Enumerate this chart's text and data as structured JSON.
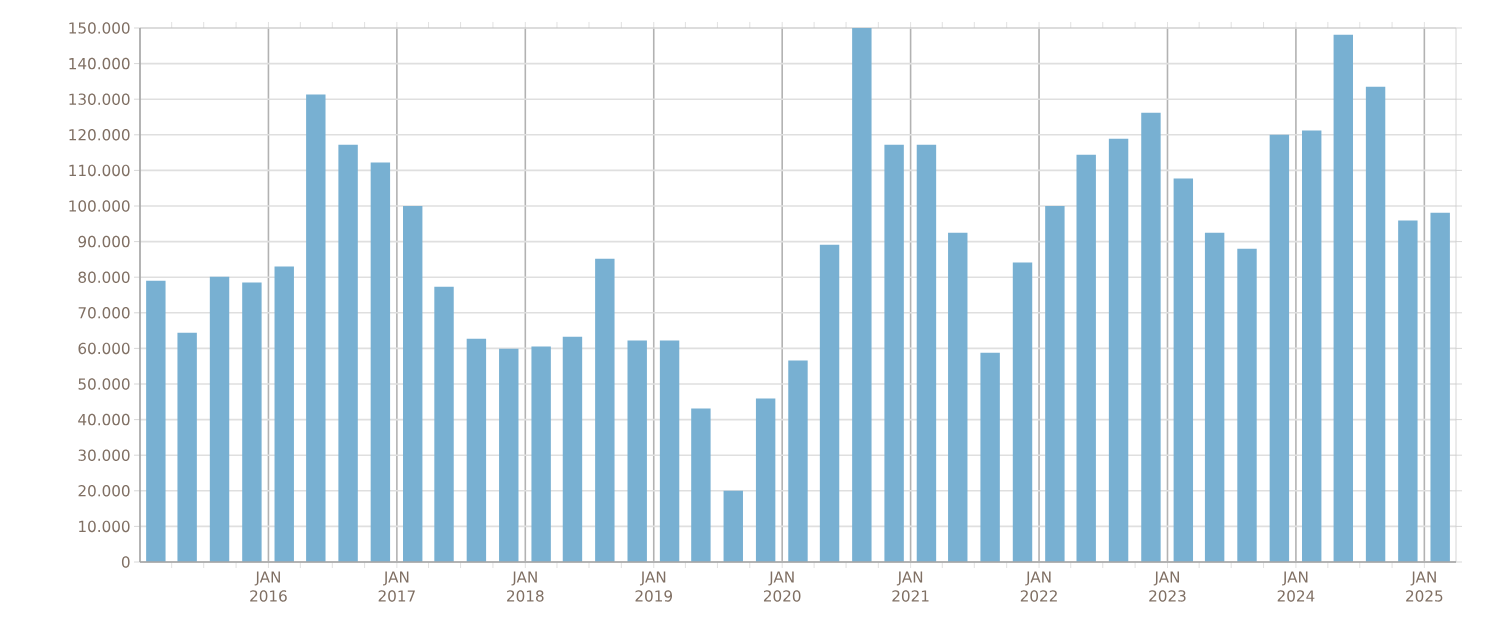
{
  "chart_data": {
    "type": "bar",
    "color": "#78b0d2",
    "grid": true,
    "x": [
      "2015-02-15",
      "2015-05-15",
      "2015-08-15",
      "2015-11-15",
      "2016-02-15",
      "2016-05-15",
      "2016-08-15",
      "2016-11-15",
      "2017-02-15",
      "2017-05-15",
      "2017-08-15",
      "2017-11-15",
      "2018-02-15",
      "2018-05-15",
      "2018-08-15",
      "2018-11-15",
      "2019-02-15",
      "2019-05-15",
      "2019-08-15",
      "2019-11-15",
      "2020-02-15",
      "2020-05-15",
      "2020-08-15",
      "2020-11-15",
      "2021-02-15",
      "2021-05-15",
      "2021-08-15",
      "2021-11-15",
      "2022-02-15",
      "2022-05-15",
      "2022-08-15",
      "2022-11-15",
      "2023-02-15",
      "2023-05-15",
      "2023-08-15",
      "2023-11-15",
      "2024-02-15",
      "2024-05-15",
      "2024-08-15",
      "2024-11-15",
      "2025-02-15"
    ],
    "values": [
      79000,
      64400,
      80100,
      78500,
      83000,
      131300,
      117200,
      112200,
      100000,
      77300,
      62700,
      59900,
      60500,
      63300,
      85200,
      62200,
      62200,
      43100,
      20000,
      45900,
      56600,
      89100,
      150000,
      117200,
      117200,
      92500,
      58800,
      84100,
      100000,
      114400,
      118900,
      126200,
      107700,
      92500,
      88000,
      120000,
      121200,
      148100,
      133500,
      95900,
      98100
    ],
    "xlim": [
      "2015-01-01",
      "2025-04-01"
    ],
    "xticks": [
      {
        "value": "2015-04-01",
        "label": null
      },
      {
        "value": "2015-07-01",
        "label": null
      },
      {
        "value": "2015-10-01",
        "label": null
      },
      {
        "value": "2016-01-01",
        "label": "JAN 2016"
      },
      {
        "value": "2016-04-01",
        "label": null
      },
      {
        "value": "2016-07-01",
        "label": null
      },
      {
        "value": "2016-10-01",
        "label": null
      },
      {
        "value": "2017-01-01",
        "label": "JAN 2017"
      },
      {
        "value": "2017-04-01",
        "label": null
      },
      {
        "value": "2017-07-01",
        "label": null
      },
      {
        "value": "2017-10-01",
        "label": null
      },
      {
        "value": "2018-01-01",
        "label": "JAN 2018"
      },
      {
        "value": "2018-04-01",
        "label": null
      },
      {
        "value": "2018-07-01",
        "label": null
      },
      {
        "value": "2018-10-01",
        "label": null
      },
      {
        "value": "2019-01-01",
        "label": "JAN 2019"
      },
      {
        "value": "2019-04-01",
        "label": null
      },
      {
        "value": "2019-07-01",
        "label": null
      },
      {
        "value": "2019-10-01",
        "label": null
      },
      {
        "value": "2020-01-01",
        "label": "JAN 2020"
      },
      {
        "value": "2020-04-01",
        "label": null
      },
      {
        "value": "2020-07-01",
        "label": null
      },
      {
        "value": "2020-10-01",
        "label": null
      },
      {
        "value": "2021-01-01",
        "label": "JAN 2021"
      },
      {
        "value": "2021-04-01",
        "label": null
      },
      {
        "value": "2021-07-01",
        "label": null
      },
      {
        "value": "2021-10-01",
        "label": null
      },
      {
        "value": "2022-01-01",
        "label": "JAN 2022"
      },
      {
        "value": "2022-04-01",
        "label": null
      },
      {
        "value": "2022-07-01",
        "label": null
      },
      {
        "value": "2022-10-01",
        "label": null
      },
      {
        "value": "2023-01-01",
        "label": "JAN 2023"
      },
      {
        "value": "2023-04-01",
        "label": null
      },
      {
        "value": "2023-07-01",
        "label": null
      },
      {
        "value": "2023-10-01",
        "label": null
      },
      {
        "value": "2024-01-01",
        "label": "JAN 2024"
      },
      {
        "value": "2024-04-01",
        "label": null
      },
      {
        "value": "2024-07-01",
        "label": null
      },
      {
        "value": "2024-10-01",
        "label": null
      },
      {
        "value": "2025-01-01",
        "label": "JAN 2025"
      }
    ],
    "ylim": [
      0,
      150000
    ],
    "yticks": [
      0,
      {
        "value": 10000,
        "label": "10.000"
      },
      {
        "value": 20000,
        "label": "20.000"
      },
      {
        "value": 30000,
        "label": "30.000"
      },
      {
        "value": 40000,
        "label": "40.000"
      },
      {
        "value": 50000,
        "label": "50.000"
      },
      {
        "value": 60000,
        "label": "60.000"
      },
      {
        "value": 70000,
        "label": "70.000"
      },
      {
        "value": 80000,
        "label": "80.000"
      },
      {
        "value": 90000,
        "label": "90.000"
      },
      {
        "value": 100000,
        "label": "100.000"
      },
      {
        "value": 110000,
        "label": "110.000"
      },
      {
        "value": 120000,
        "label": "120.000"
      },
      {
        "value": 130000,
        "label": "130.000"
      },
      {
        "value": 140000,
        "label": "140.000"
      },
      {
        "value": 150000,
        "label": "150.000"
      }
    ]
  }
}
